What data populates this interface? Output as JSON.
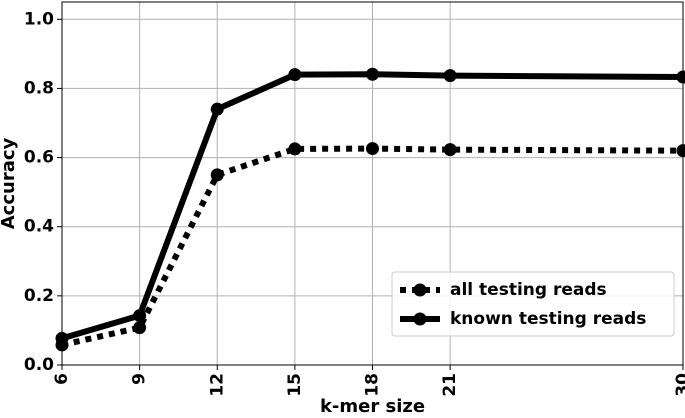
{
  "chart_data": {
    "type": "line",
    "title": "",
    "xlabel": "k-mer size",
    "ylabel": "Accuracy",
    "x": [
      6,
      9,
      12,
      15,
      18,
      21,
      30
    ],
    "xlim": [
      6,
      30
    ],
    "ylim": [
      0.0,
      1.05
    ],
    "xticks": [
      "6",
      "9",
      "12",
      "15",
      "18",
      "21",
      "30"
    ],
    "yticks": [
      "0.0",
      "0.2",
      "0.4",
      "0.6",
      "0.8",
      "1.0"
    ],
    "grid": true,
    "legend_position": "lower-right",
    "series": [
      {
        "name": "all testing reads",
        "values": [
          0.058,
          0.108,
          0.55,
          0.625,
          0.626,
          0.623,
          0.62
        ],
        "style": "dotted",
        "color": "#000000"
      },
      {
        "name": "known testing reads",
        "values": [
          0.077,
          0.143,
          0.74,
          0.84,
          0.841,
          0.837,
          0.833
        ],
        "style": "solid",
        "color": "#000000"
      }
    ]
  }
}
